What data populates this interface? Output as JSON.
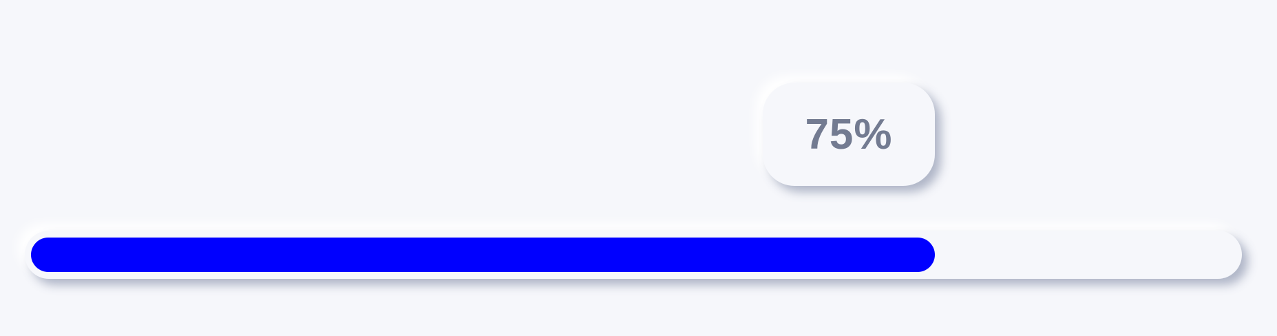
{
  "progress": {
    "value": 75,
    "label": "75%"
  },
  "colors": {
    "background": "#f6f7fb",
    "fill": "#0000ff",
    "label_text": "#737b91"
  }
}
